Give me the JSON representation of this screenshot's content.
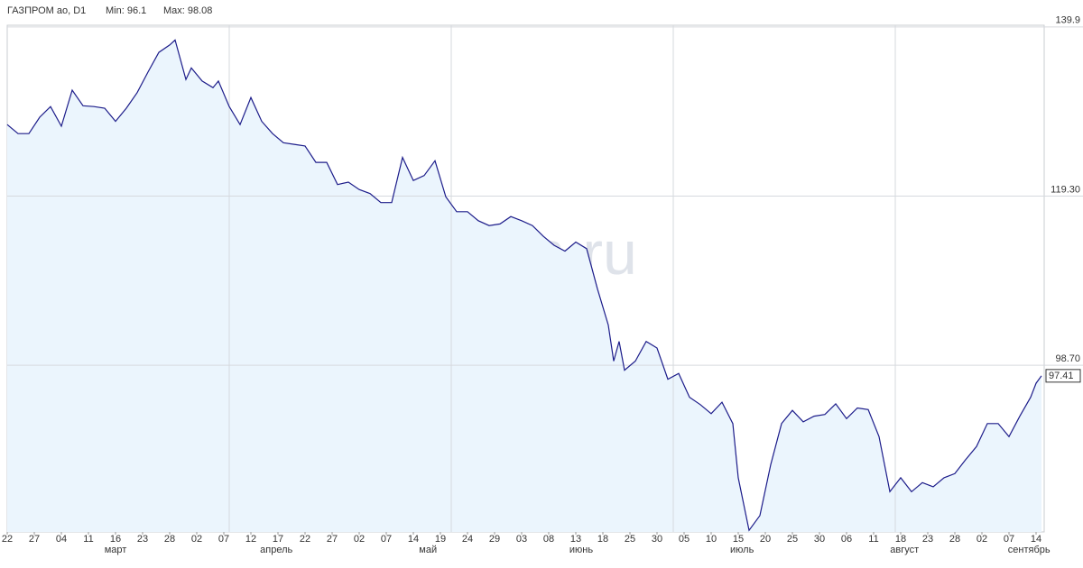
{
  "chart_data": {
    "type": "area",
    "title": "ГАЗПРОМ ао, D1",
    "min_label": "Min: 96.1",
    "max_label": "Max: 98.08",
    "watermark": "finam.ru",
    "x": [
      0,
      2,
      4,
      6,
      8,
      10,
      12,
      14,
      16,
      18,
      20,
      22,
      24,
      26,
      28,
      30,
      31,
      33,
      34,
      36,
      38,
      39,
      41,
      43,
      45,
      47,
      49,
      51,
      53,
      55,
      57,
      59,
      61,
      63,
      65,
      67,
      69,
      71,
      73,
      75,
      77,
      79,
      81,
      83,
      85,
      87,
      89,
      91,
      93,
      95,
      97,
      99,
      101,
      103,
      105,
      107,
      109,
      111,
      112,
      113,
      114,
      116,
      118,
      120,
      122,
      124,
      126,
      128,
      130,
      132,
      134,
      135,
      137,
      139,
      141,
      143,
      145,
      147,
      149,
      151,
      153,
      155,
      157,
      159,
      161,
      163,
      165,
      167,
      169,
      171,
      173,
      175,
      177,
      179,
      181,
      183,
      185,
      187,
      189,
      190,
      191
    ],
    "series": [
      {
        "color": "#1c1c8a",
        "values": [
          128.0,
          126.9,
          126.9,
          128.9,
          130.2,
          127.8,
          132.2,
          130.3,
          130.2,
          130.0,
          128.4,
          130.0,
          131.9,
          134.4,
          136.8,
          137.7,
          138.3,
          133.5,
          134.9,
          133.3,
          132.5,
          133.3,
          130.2,
          128.0,
          131.3,
          128.4,
          126.9,
          125.8,
          125.6,
          125.4,
          123.4,
          123.4,
          120.7,
          121.0,
          120.1,
          119.6,
          118.5,
          118.5,
          124.0,
          121.2,
          121.8,
          123.6,
          119.2,
          117.4,
          117.4,
          116.3,
          115.7,
          115.9,
          116.8,
          116.3,
          115.7,
          114.4,
          113.3,
          112.6,
          113.7,
          112.9,
          108.0,
          103.6,
          99.2,
          101.6,
          98.1,
          99.2,
          101.6,
          100.8,
          97.0,
          97.7,
          94.8,
          93.9,
          92.8,
          94.2,
          91.6,
          85.0,
          78.6,
          80.4,
          86.6,
          91.6,
          93.2,
          91.8,
          92.5,
          92.7,
          94.0,
          92.2,
          93.5,
          93.3,
          90.0,
          83.3,
          85.0,
          83.3,
          84.4,
          83.9,
          85.0,
          85.5,
          87.2,
          88.8,
          91.6,
          91.6,
          90.0,
          92.5,
          94.8,
          96.5,
          97.41
        ]
      }
    ],
    "fill_color": "#ebf5fd",
    "xlim": [
      0,
      191.5
    ],
    "ylim": [
      78.4,
      140.1
    ],
    "yticks": [
      139.9,
      {
        "value": 119.3,
        "label": "119.30"
      },
      {
        "value": 98.7,
        "label": "98.70"
      }
    ],
    "xticks": [
      {
        "value": 0,
        "label": "22"
      },
      {
        "value": 5,
        "label": "27"
      },
      {
        "value": 10,
        "label": "04"
      },
      {
        "value": 15,
        "label": "11"
      },
      {
        "value": 20,
        "label": "16"
      },
      {
        "value": 25,
        "label": "23"
      },
      {
        "value": 30,
        "label": "28"
      },
      {
        "value": 35,
        "label": "02"
      },
      {
        "value": 40,
        "label": "07"
      },
      {
        "value": 45,
        "label": "12"
      },
      {
        "value": 50,
        "label": "17"
      },
      {
        "value": 55,
        "label": "22"
      },
      {
        "value": 60,
        "label": "27"
      },
      {
        "value": 65,
        "label": "02"
      },
      {
        "value": 70,
        "label": "07"
      },
      {
        "value": 75,
        "label": "14"
      },
      {
        "value": 80,
        "label": "19"
      },
      {
        "value": 85,
        "label": "24"
      },
      {
        "value": 90,
        "label": "29"
      },
      {
        "value": 95,
        "label": "03"
      },
      {
        "value": 100,
        "label": "08"
      },
      {
        "value": 105,
        "label": "13"
      },
      {
        "value": 110,
        "label": "18"
      },
      {
        "value": 115,
        "label": "25"
      },
      {
        "value": 120,
        "label": "30"
      },
      {
        "value": 125,
        "label": "05"
      },
      {
        "value": 130,
        "label": "10"
      },
      {
        "value": 135,
        "label": "15"
      },
      {
        "value": 140,
        "label": "20"
      },
      {
        "value": 145,
        "label": "25"
      },
      {
        "value": 150,
        "label": "30"
      },
      {
        "value": 155,
        "label": "06"
      },
      {
        "value": 160,
        "label": "11"
      },
      {
        "value": 165,
        "label": "18"
      },
      {
        "value": 170,
        "label": "23"
      },
      {
        "value": 175,
        "label": "28"
      },
      {
        "value": 180,
        "label": "02"
      },
      {
        "value": 185,
        "label": "07"
      },
      {
        "value": 190,
        "label": "14"
      }
    ],
    "months": [
      {
        "value": 20,
        "label": "март"
      },
      {
        "value": 49.7,
        "label": "апрель"
      },
      {
        "value": 77.7,
        "label": "май"
      },
      {
        "value": 106,
        "label": "июнь"
      },
      {
        "value": 135.7,
        "label": "июль"
      },
      {
        "value": 165.7,
        "label": "август"
      },
      {
        "value": 188.7,
        "label": "сентябрь"
      }
    ],
    "xgrid": [
      41,
      82,
      123,
      164
    ],
    "grid": true
  }
}
